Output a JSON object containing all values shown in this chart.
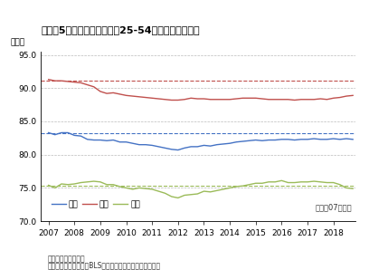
{
  "title": "（図表5）プライムエイジ（25-54歳）の労働参加率",
  "ylabel": "（％）",
  "ylim": [
    70.0,
    95.5
  ],
  "yticks": [
    70.0,
    75.0,
    80.0,
    85.0,
    90.0,
    95.0
  ],
  "xlim": [
    2006.7,
    2018.85
  ],
  "xticks": [
    2007,
    2008,
    2009,
    2010,
    2011,
    2012,
    2013,
    2014,
    2015,
    2016,
    2017,
    2018
  ],
  "note1": "（注）季節調整済み",
  "note2": "（資料）労働統計局（BLS）よりニッセイ基礎研究所作成",
  "legend_dotline": "点線は07年平均",
  "legend_items": [
    "合計",
    "男性",
    "女性"
  ],
  "colors": {
    "total": "#4472C4",
    "male": "#C0504D",
    "female": "#9BBB59"
  },
  "total": [
    83.3,
    83.0,
    83.3,
    83.3,
    82.9,
    82.8,
    82.3,
    82.2,
    82.2,
    82.1,
    82.2,
    81.9,
    81.9,
    81.7,
    81.5,
    81.5,
    81.4,
    81.2,
    81.0,
    80.8,
    80.7,
    81.0,
    81.2,
    81.2,
    81.4,
    81.3,
    81.5,
    81.6,
    81.7,
    81.9,
    82.0,
    82.1,
    82.2,
    82.1,
    82.2,
    82.2,
    82.3,
    82.3,
    82.2,
    82.3,
    82.3,
    82.4,
    82.3,
    82.3,
    82.4,
    82.3,
    82.4,
    82.3
  ],
  "male": [
    91.3,
    91.1,
    91.1,
    91.0,
    90.9,
    90.8,
    90.5,
    90.2,
    89.5,
    89.2,
    89.3,
    89.1,
    88.9,
    88.8,
    88.7,
    88.6,
    88.5,
    88.4,
    88.3,
    88.2,
    88.2,
    88.3,
    88.5,
    88.4,
    88.4,
    88.3,
    88.3,
    88.3,
    88.3,
    88.4,
    88.5,
    88.5,
    88.5,
    88.4,
    88.3,
    88.3,
    88.3,
    88.3,
    88.2,
    88.3,
    88.3,
    88.3,
    88.4,
    88.3,
    88.5,
    88.6,
    88.8,
    88.9
  ],
  "female": [
    75.4,
    75.0,
    75.6,
    75.5,
    75.6,
    75.8,
    75.9,
    76.0,
    75.9,
    75.5,
    75.5,
    75.2,
    75.0,
    74.8,
    75.0,
    74.9,
    74.8,
    74.5,
    74.2,
    73.7,
    73.5,
    73.9,
    74.0,
    74.1,
    74.5,
    74.4,
    74.6,
    74.8,
    75.0,
    75.2,
    75.3,
    75.5,
    75.7,
    75.7,
    75.9,
    75.9,
    76.1,
    75.8,
    75.8,
    75.9,
    75.9,
    76.0,
    75.9,
    75.8,
    75.8,
    75.5,
    75.0,
    74.9
  ],
  "n_points": 48,
  "start_year": 2007
}
